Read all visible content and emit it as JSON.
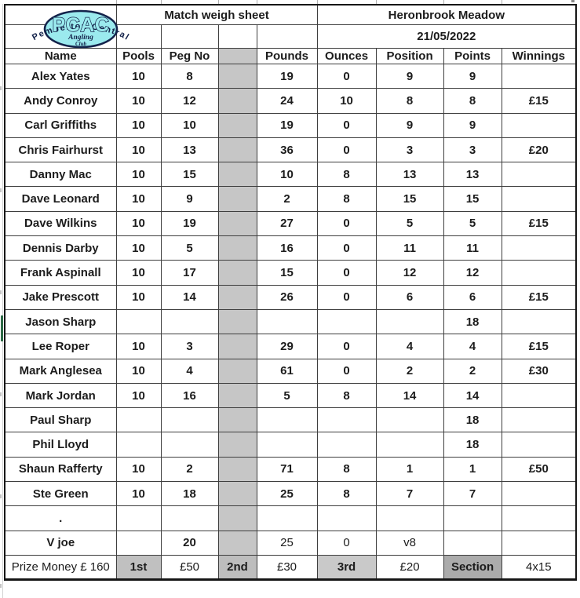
{
  "logo": {
    "arc_text": "Pemberton   Central",
    "acronym": "PCAC",
    "line1": "Angling",
    "line2": "Club"
  },
  "titles": {
    "sheet_title": "Match weigh sheet",
    "venue": "Heronbrook Meadow",
    "date": "21/05/2022"
  },
  "columns": [
    "Name",
    "Pools",
    "Peg No",
    "",
    "Pounds",
    "Ounces",
    "Position",
    "Points",
    "Winnings"
  ],
  "rows": [
    {
      "name": "Alex Yates",
      "pools": "10",
      "peg": "8",
      "pounds": "19",
      "ounces": "0",
      "position": "9",
      "points": "9",
      "winnings": ""
    },
    {
      "name": "Andy Conroy",
      "pools": "10",
      "peg": "12",
      "pounds": "24",
      "ounces": "10",
      "position": "8",
      "points": "8",
      "winnings": "£15"
    },
    {
      "name": "Carl Griffiths",
      "pools": "10",
      "peg": "10",
      "pounds": "19",
      "ounces": "0",
      "position": "9",
      "points": "9",
      "winnings": ""
    },
    {
      "name": "Chris Fairhurst",
      "pools": "10",
      "peg": "13",
      "pounds": "36",
      "ounces": "0",
      "position": "3",
      "points": "3",
      "winnings": "£20"
    },
    {
      "name": "Danny Mac",
      "pools": "10",
      "peg": "15",
      "pounds": "10",
      "ounces": "8",
      "position": "13",
      "points": "13",
      "winnings": ""
    },
    {
      "name": "Dave Leonard",
      "pools": "10",
      "peg": "9",
      "pounds": "2",
      "ounces": "8",
      "position": "15",
      "points": "15",
      "winnings": ""
    },
    {
      "name": "Dave Wilkins",
      "pools": "10",
      "peg": "19",
      "pounds": "27",
      "ounces": "0",
      "position": "5",
      "points": "5",
      "winnings": "£15"
    },
    {
      "name": "Dennis Darby",
      "pools": "10",
      "peg": "5",
      "pounds": "16",
      "ounces": "0",
      "position": "11",
      "points": "11",
      "winnings": ""
    },
    {
      "name": "Frank Aspinall",
      "pools": "10",
      "peg": "17",
      "pounds": "15",
      "ounces": "0",
      "position": "12",
      "points": "12",
      "winnings": ""
    },
    {
      "name": "Jake Prescott",
      "pools": "10",
      "peg": "14",
      "pounds": "26",
      "ounces": "0",
      "position": "6",
      "points": "6",
      "winnings": "£15"
    },
    {
      "name": "Jason Sharp",
      "pools": "",
      "peg": "",
      "pounds": "",
      "ounces": "",
      "position": "",
      "points": "18",
      "winnings": ""
    },
    {
      "name": "Lee Roper",
      "pools": "10",
      "peg": "3",
      "pounds": "29",
      "ounces": "0",
      "position": "4",
      "points": "4",
      "winnings": "£15"
    },
    {
      "name": "Mark Anglesea",
      "pools": "10",
      "peg": "4",
      "pounds": "61",
      "ounces": "0",
      "position": "2",
      "points": "2",
      "winnings": "£30"
    },
    {
      "name": "Mark Jordan",
      "pools": "10",
      "peg": "16",
      "pounds": "5",
      "ounces": "8",
      "position": "14",
      "points": "14",
      "winnings": ""
    },
    {
      "name": "Paul Sharp",
      "pools": "",
      "peg": "",
      "pounds": "",
      "ounces": "",
      "position": "",
      "points": "18",
      "winnings": ""
    },
    {
      "name": "Phil Lloyd",
      "pools": "",
      "peg": "",
      "pounds": "",
      "ounces": "",
      "position": "",
      "points": "18",
      "winnings": ""
    },
    {
      "name": "Shaun Rafferty",
      "pools": "10",
      "peg": "2",
      "pounds": "71",
      "ounces": "8",
      "position": "1",
      "points": "1",
      "winnings": "£50"
    },
    {
      "name": "Ste Green",
      "pools": "10",
      "peg": "18",
      "pounds": "25",
      "ounces": "8",
      "position": "7",
      "points": "7",
      "winnings": ""
    },
    {
      "name": ".",
      "pools": "",
      "peg": "",
      "pounds": "",
      "ounces": "",
      "position": "",
      "points": "",
      "winnings": ""
    },
    {
      "name": "V joe",
      "pools": "",
      "peg": "20",
      "pounds": "25",
      "ounces": "0",
      "position": "v8",
      "points": "",
      "winnings": "",
      "light_fields": [
        "pounds",
        "ounces",
        "position"
      ]
    }
  ],
  "footer": {
    "prize_label": "Prize Money £ 160",
    "first_label": "1st",
    "first_value": "£50",
    "second_label": "2nd",
    "second_value": "£30",
    "third_label": "3rd",
    "third_value": "£20",
    "section_label": "Section",
    "section_value": "4x15"
  },
  "colors": {
    "gray_column": "#c6c6c6",
    "footer_first": "#c0c0c0",
    "footer_second": "#bdbdbd",
    "footer_third": "#c9c9c9",
    "footer_section": "#ababab",
    "logo_fill": "#9beaee",
    "logo_ink": "#13224a",
    "row_marker_green": "#2e6b47"
  }
}
